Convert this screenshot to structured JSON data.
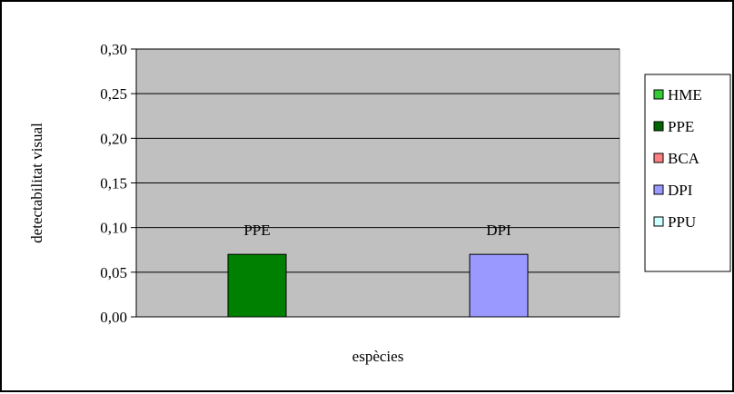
{
  "chart_data": {
    "type": "bar",
    "title": "",
    "xlabel": "espècies",
    "ylabel": "detectabilitat visual",
    "ylim": [
      0,
      0.3
    ],
    "yticks": [
      "0,00",
      "0,05",
      "0,10",
      "0,15",
      "0,20",
      "0,25",
      "0,30"
    ],
    "yticks_values": [
      0,
      0.05,
      0.1,
      0.15,
      0.2,
      0.25,
      0.3
    ],
    "plot_background": "#c0c0c0",
    "grid": true,
    "legend_position": "right",
    "categories": [
      "PPE",
      "DPI"
    ],
    "bars": [
      {
        "label": "PPE",
        "value": 0.07,
        "color": "#008000"
      },
      {
        "label": "DPI",
        "value": 0.07,
        "color": "#9999ff"
      }
    ],
    "legend": [
      {
        "name": "HME",
        "color": "#33cc33"
      },
      {
        "name": "PPE",
        "color": "#006400"
      },
      {
        "name": "BCA",
        "color": "#ff8080"
      },
      {
        "name": "DPI",
        "color": "#9999ff"
      },
      {
        "name": "PPU",
        "color": "#ccffff"
      }
    ]
  }
}
